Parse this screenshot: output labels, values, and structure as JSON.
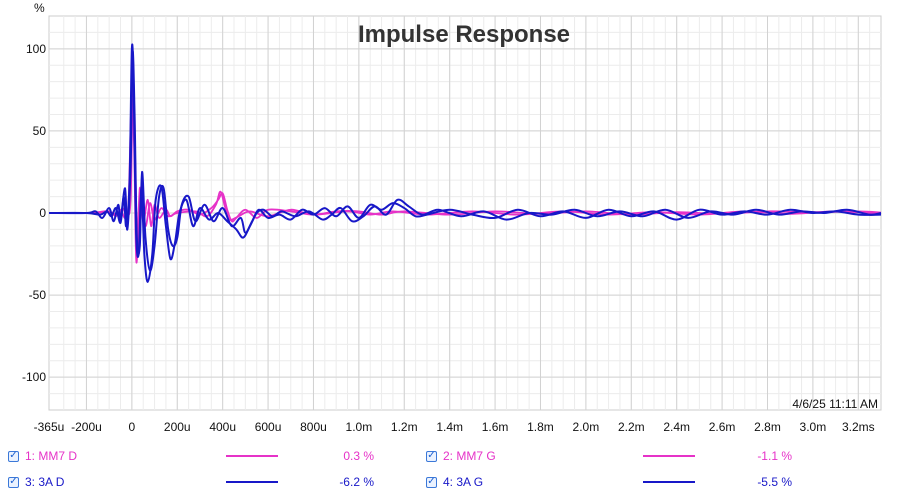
{
  "chart_data": {
    "type": "line",
    "title": "Impulse Response",
    "ylabel": "%",
    "timestamp": "4/6/25 11:11 AM",
    "xlim": [
      -0.365,
      3.3
    ],
    "ylim": [
      -120,
      120
    ],
    "x_ticks": [
      {
        "v": -0.365,
        "label": "-365u"
      },
      {
        "v": -0.2,
        "label": "-200u"
      },
      {
        "v": 0,
        "label": "0"
      },
      {
        "v": 0.2,
        "label": "200u"
      },
      {
        "v": 0.4,
        "label": "400u"
      },
      {
        "v": 0.6,
        "label": "600u"
      },
      {
        "v": 0.8,
        "label": "800u"
      },
      {
        "v": 1.0,
        "label": "1.0m"
      },
      {
        "v": 1.2,
        "label": "1.2m"
      },
      {
        "v": 1.4,
        "label": "1.4m"
      },
      {
        "v": 1.6,
        "label": "1.6m"
      },
      {
        "v": 1.8,
        "label": "1.8m"
      },
      {
        "v": 2.0,
        "label": "2.0m"
      },
      {
        "v": 2.2,
        "label": "2.2m"
      },
      {
        "v": 2.4,
        "label": "2.4m"
      },
      {
        "v": 2.6,
        "label": "2.6m"
      },
      {
        "v": 2.8,
        "label": "2.8m"
      },
      {
        "v": 3.0,
        "label": "3.0m"
      },
      {
        "v": 3.2,
        "label": "3.2ms"
      }
    ],
    "y_ticks": [
      {
        "v": 100,
        "label": "100"
      },
      {
        "v": 50,
        "label": "50"
      },
      {
        "v": 0,
        "label": "0"
      },
      {
        "v": -50,
        "label": "-50"
      },
      {
        "v": -100,
        "label": "-100"
      }
    ],
    "series": [
      {
        "name": "1: MM7 D",
        "color": "#e632c8",
        "value": "0.3 %",
        "points": [
          [
            -0.365,
            0
          ],
          [
            -0.2,
            0
          ],
          [
            -0.15,
            0.5
          ],
          [
            -0.1,
            1
          ],
          [
            -0.07,
            -2
          ],
          [
            -0.05,
            2
          ],
          [
            -0.03,
            -3
          ],
          [
            -0.015,
            5
          ],
          [
            0,
            75
          ],
          [
            0.01,
            40
          ],
          [
            0.02,
            -30
          ],
          [
            0.035,
            15
          ],
          [
            0.05,
            -5
          ],
          [
            0.07,
            8
          ],
          [
            0.085,
            -8
          ],
          [
            0.1,
            5
          ],
          [
            0.12,
            -3
          ],
          [
            0.15,
            2
          ],
          [
            0.17,
            -2
          ],
          [
            0.2,
            1
          ],
          [
            0.25,
            2
          ],
          [
            0.3,
            -1
          ],
          [
            0.35,
            3
          ],
          [
            0.38,
            8
          ],
          [
            0.4,
            12
          ],
          [
            0.42,
            2
          ],
          [
            0.44,
            -5
          ],
          [
            0.46,
            -3
          ],
          [
            0.5,
            2
          ],
          [
            0.55,
            -3
          ],
          [
            0.6,
            2
          ],
          [
            0.7,
            1
          ],
          [
            0.8,
            -1
          ],
          [
            0.9,
            1
          ],
          [
            1.0,
            1
          ],
          [
            1.1,
            -1
          ],
          [
            1.2,
            1
          ],
          [
            1.4,
            -1
          ],
          [
            1.6,
            1
          ],
          [
            1.8,
            -0.5
          ],
          [
            2.0,
            1
          ],
          [
            2.2,
            -1
          ],
          [
            2.4,
            0.5
          ],
          [
            2.6,
            -0.5
          ],
          [
            2.8,
            1
          ],
          [
            3.0,
            0.5
          ],
          [
            3.2,
            1
          ],
          [
            3.3,
            0.3
          ]
        ]
      },
      {
        "name": "2: MM7 G",
        "color": "#e632c8",
        "value": "-1.1 %",
        "points": [
          [
            -0.365,
            0
          ],
          [
            -0.2,
            0
          ],
          [
            -0.1,
            0.5
          ],
          [
            -0.06,
            -1
          ],
          [
            -0.04,
            3
          ],
          [
            -0.02,
            -2
          ],
          [
            -0.005,
            10
          ],
          [
            0.005,
            80
          ],
          [
            0.015,
            30
          ],
          [
            0.025,
            -25
          ],
          [
            0.04,
            10
          ],
          [
            0.06,
            -8
          ],
          [
            0.08,
            6
          ],
          [
            0.1,
            -4
          ],
          [
            0.13,
            3
          ],
          [
            0.16,
            -2
          ],
          [
            0.2,
            0
          ],
          [
            0.28,
            1
          ],
          [
            0.33,
            -2
          ],
          [
            0.37,
            5
          ],
          [
            0.39,
            13
          ],
          [
            0.41,
            4
          ],
          [
            0.43,
            -4
          ],
          [
            0.47,
            -2
          ],
          [
            0.52,
            1
          ],
          [
            0.6,
            -2
          ],
          [
            0.7,
            2
          ],
          [
            0.8,
            -1
          ],
          [
            0.95,
            1
          ],
          [
            1.05,
            -1
          ],
          [
            1.15,
            1
          ],
          [
            1.3,
            -1
          ],
          [
            1.5,
            1
          ],
          [
            1.7,
            -1
          ],
          [
            1.9,
            1
          ],
          [
            2.1,
            -1
          ],
          [
            2.3,
            0.5
          ],
          [
            2.5,
            -1
          ],
          [
            2.7,
            1
          ],
          [
            2.9,
            -0.5
          ],
          [
            3.1,
            1
          ],
          [
            3.3,
            -0.5
          ]
        ]
      },
      {
        "name": "3: 3A D",
        "color": "#1818c8",
        "value": "-6.2 %",
        "points": [
          [
            -0.365,
            0
          ],
          [
            -0.2,
            0
          ],
          [
            -0.16,
            1
          ],
          [
            -0.13,
            -3
          ],
          [
            -0.1,
            3
          ],
          [
            -0.08,
            -5
          ],
          [
            -0.06,
            5
          ],
          [
            -0.05,
            -4
          ],
          [
            -0.03,
            15
          ],
          [
            -0.02,
            -10
          ],
          [
            -0.005,
            30
          ],
          [
            0.003,
            98
          ],
          [
            0.012,
            60
          ],
          [
            0.022,
            -15
          ],
          [
            0.035,
            -20
          ],
          [
            0.045,
            25
          ],
          [
            0.06,
            -15
          ],
          [
            0.08,
            -35
          ],
          [
            0.1,
            -20
          ],
          [
            0.12,
            10
          ],
          [
            0.14,
            15
          ],
          [
            0.16,
            -10
          ],
          [
            0.18,
            -20
          ],
          [
            0.2,
            -15
          ],
          [
            0.22,
            5
          ],
          [
            0.25,
            10
          ],
          [
            0.28,
            -5
          ],
          [
            0.32,
            5
          ],
          [
            0.36,
            -5
          ],
          [
            0.4,
            3
          ],
          [
            0.44,
            -8
          ],
          [
            0.48,
            -3
          ],
          [
            0.5,
            -12
          ],
          [
            0.53,
            -5
          ],
          [
            0.56,
            2
          ],
          [
            0.6,
            -3
          ],
          [
            0.65,
            -1
          ],
          [
            0.7,
            -4
          ],
          [
            0.75,
            2
          ],
          [
            0.8,
            -1
          ],
          [
            0.85,
            3
          ],
          [
            0.9,
            -2
          ],
          [
            0.95,
            4
          ],
          [
            1.0,
            -3
          ],
          [
            1.05,
            5
          ],
          [
            1.1,
            2
          ],
          [
            1.15,
            6
          ],
          [
            1.2,
            3
          ],
          [
            1.25,
            -2
          ],
          [
            1.3,
            -1
          ],
          [
            1.4,
            2
          ],
          [
            1.5,
            -1
          ],
          [
            1.6,
            -3
          ],
          [
            1.7,
            2
          ],
          [
            1.8,
            -2
          ],
          [
            1.9,
            1
          ],
          [
            2.0,
            -3
          ],
          [
            2.1,
            2
          ],
          [
            2.2,
            -2
          ],
          [
            2.3,
            1
          ],
          [
            2.4,
            -4
          ],
          [
            2.5,
            2
          ],
          [
            2.6,
            -1
          ],
          [
            2.7,
            1
          ],
          [
            2.8,
            -1
          ],
          [
            2.9,
            2
          ],
          [
            3.0,
            0
          ],
          [
            3.1,
            1
          ],
          [
            3.2,
            -1
          ],
          [
            3.3,
            -1
          ]
        ]
      },
      {
        "name": "4: 3A G",
        "color": "#1818c8",
        "value": "-5.5 %",
        "points": [
          [
            -0.365,
            0
          ],
          [
            -0.2,
            0
          ],
          [
            -0.14,
            -1
          ],
          [
            -0.11,
            1
          ],
          [
            -0.09,
            -2
          ],
          [
            -0.07,
            3
          ],
          [
            -0.05,
            -6
          ],
          [
            -0.035,
            10
          ],
          [
            -0.025,
            -8
          ],
          [
            -0.01,
            20
          ],
          [
            0,
            100
          ],
          [
            0.008,
            75
          ],
          [
            0.018,
            -10
          ],
          [
            0.03,
            -25
          ],
          [
            0.042,
            15
          ],
          [
            0.055,
            -25
          ],
          [
            0.07,
            -42
          ],
          [
            0.09,
            -25
          ],
          [
            0.105,
            8
          ],
          [
            0.13,
            16
          ],
          [
            0.15,
            -8
          ],
          [
            0.17,
            -28
          ],
          [
            0.19,
            -18
          ],
          [
            0.21,
            0
          ],
          [
            0.24,
            8
          ],
          [
            0.27,
            -8
          ],
          [
            0.3,
            3
          ],
          [
            0.34,
            -4
          ],
          [
            0.38,
            0
          ],
          [
            0.42,
            -5
          ],
          [
            0.46,
            -10
          ],
          [
            0.49,
            -15
          ],
          [
            0.52,
            -8
          ],
          [
            0.55,
            0
          ],
          [
            0.58,
            2
          ],
          [
            0.62,
            -2
          ],
          [
            0.66,
            1
          ],
          [
            0.72,
            -2
          ],
          [
            0.78,
            1
          ],
          [
            0.84,
            -4
          ],
          [
            0.88,
            -1
          ],
          [
            0.92,
            3
          ],
          [
            0.97,
            -5
          ],
          [
            1.02,
            -2
          ],
          [
            1.07,
            4
          ],
          [
            1.12,
            -1
          ],
          [
            1.17,
            8
          ],
          [
            1.22,
            4
          ],
          [
            1.28,
            -1
          ],
          [
            1.35,
            2
          ],
          [
            1.45,
            -2
          ],
          [
            1.55,
            1
          ],
          [
            1.65,
            -4
          ],
          [
            1.75,
            0
          ],
          [
            1.85,
            -1
          ],
          [
            1.95,
            2
          ],
          [
            2.05,
            -2
          ],
          [
            2.15,
            1
          ],
          [
            2.25,
            -2
          ],
          [
            2.35,
            2
          ],
          [
            2.45,
            -3
          ],
          [
            2.55,
            1
          ],
          [
            2.65,
            -1
          ],
          [
            2.75,
            2
          ],
          [
            2.85,
            -1
          ],
          [
            2.95,
            1
          ],
          [
            3.05,
            0
          ],
          [
            3.15,
            2
          ],
          [
            3.25,
            -1
          ],
          [
            3.3,
            0
          ]
        ]
      }
    ]
  },
  "legend": {
    "check_mark": "✓"
  }
}
